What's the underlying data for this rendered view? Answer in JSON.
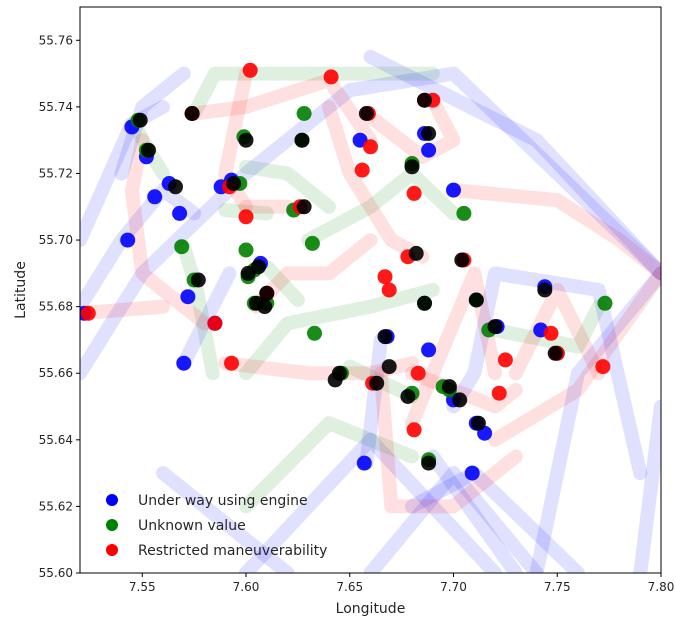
{
  "chart_data": {
    "type": "scatter",
    "title": "",
    "xlabel": "Longitude",
    "ylabel": "Latitude",
    "xlim": [
      7.52,
      7.8
    ],
    "ylim": [
      55.6,
      55.77
    ],
    "xticks": [
      "7.55",
      "7.60",
      "7.65",
      "7.70",
      "7.75",
      "7.80"
    ],
    "yticks": [
      "55.60",
      "55.62",
      "55.64",
      "55.66",
      "55.68",
      "55.70",
      "55.72",
      "55.74",
      "55.76"
    ],
    "grid": false,
    "legend_position": "lower-left",
    "series": [
      {
        "name": "Under way using engine",
        "color": "#0000ff",
        "tracks": [
          [
            [
              7.52,
              55.66
            ],
            [
              7.55,
              55.69
            ],
            [
              7.6,
              55.72
            ],
            [
              7.65,
              55.745
            ],
            [
              7.7,
              55.75
            ],
            [
              7.75,
              55.72
            ],
            [
              7.8,
              55.69
            ]
          ],
          [
            [
              7.52,
              55.7
            ],
            [
              7.545,
              55.735
            ],
            [
              7.56,
              55.74
            ]
          ],
          [
            [
              7.52,
              55.68
            ],
            [
              7.54,
              55.7
            ],
            [
              7.56,
              55.715
            ],
            [
              7.575,
              55.708
            ]
          ],
          [
            [
              7.66,
              55.755
            ],
            [
              7.74,
              55.73
            ],
            [
              7.8,
              55.69
            ]
          ],
          [
            [
              7.8,
              55.69
            ],
            [
              7.76,
              55.66
            ],
            [
              7.74,
              55.6
            ]
          ],
          [
            [
              7.8,
              55.65
            ],
            [
              7.79,
              55.6
            ]
          ],
          [
            [
              7.6,
              55.6
            ],
            [
              7.66,
              55.64
            ],
            [
              7.72,
              55.6
            ]
          ],
          [
            [
              7.56,
              55.63
            ],
            [
              7.62,
              55.6
            ]
          ],
          [
            [
              7.57,
              55.663
            ],
            [
              7.592,
              55.69
            ]
          ],
          [
            [
              7.658,
              55.633
            ],
            [
              7.665,
              55.67
            ]
          ],
          [
            [
              7.68,
              55.62
            ],
            [
              7.71,
              55.63
            ],
            [
              7.76,
              55.6
            ]
          ],
          [
            [
              7.69,
              55.635
            ],
            [
              7.73,
              55.6
            ]
          ],
          [
            [
              7.7,
              55.65
            ],
            [
              7.71,
              55.66
            ],
            [
              7.72,
              55.69
            ],
            [
              7.77,
              55.685
            ],
            [
              7.79,
              55.63
            ]
          ],
          [
            [
              7.66,
              55.6
            ],
            [
              7.7,
              55.63
            ],
            [
              7.74,
              55.6
            ]
          ],
          [
            [
              7.54,
              55.72
            ],
            [
              7.55,
              55.74
            ],
            [
              7.57,
              55.75
            ]
          ]
        ],
        "points": [
          [
            7.522,
            55.678
          ],
          [
            7.543,
            55.7
          ],
          [
            7.545,
            55.734
          ],
          [
            7.552,
            55.725
          ],
          [
            7.556,
            55.713
          ],
          [
            7.563,
            55.717
          ],
          [
            7.568,
            55.708
          ],
          [
            7.572,
            55.683
          ],
          [
            7.588,
            55.716
          ],
          [
            7.593,
            55.718
          ],
          [
            7.57,
            55.663
          ],
          [
            7.585,
            55.675
          ],
          [
            7.655,
            55.73
          ],
          [
            7.686,
            55.732
          ],
          [
            7.688,
            55.727
          ],
          [
            7.688,
            55.667
          ],
          [
            7.657,
            55.633
          ],
          [
            7.7,
            55.652
          ],
          [
            7.709,
            55.63
          ],
          [
            7.711,
            55.645
          ],
          [
            7.721,
            55.674
          ],
          [
            7.744,
            55.686
          ],
          [
            7.742,
            55.673
          ],
          [
            7.668,
            55.671
          ],
          [
            7.607,
            55.693
          ],
          [
            7.7,
            55.715
          ],
          [
            7.715,
            55.642
          ]
        ]
      },
      {
        "name": "Unknown value",
        "color": "#008000",
        "tracks": [
          [
            [
              7.575,
              55.738
            ],
            [
              7.585,
              55.75
            ],
            [
              7.62,
              55.75
            ],
            [
              7.69,
              55.75
            ]
          ],
          [
            [
              7.546,
              55.735
            ],
            [
              7.553,
              55.727
            ],
            [
              7.56,
              55.72
            ]
          ],
          [
            [
              7.6,
              55.722
            ],
            [
              7.62,
              55.72
            ],
            [
              7.64,
              55.71
            ]
          ],
          [
            [
              7.61,
              55.692
            ],
            [
              7.625,
              55.682
            ]
          ],
          [
            [
              7.6,
              55.66
            ],
            [
              7.62,
              55.675
            ],
            [
              7.66,
              55.68
            ],
            [
              7.69,
              55.685
            ]
          ],
          [
            [
              7.63,
              55.7
            ],
            [
              7.66,
              55.71
            ],
            [
              7.68,
              55.72
            ],
            [
              7.7,
              55.708
            ]
          ],
          [
            [
              7.6,
              55.62
            ],
            [
              7.64,
              55.645
            ],
            [
              7.68,
              55.635
            ]
          ],
          [
            [
              7.65,
              55.662
            ],
            [
              7.68,
              55.653
            ]
          ],
          [
            [
              7.57,
              55.698
            ],
            [
              7.576,
              55.686
            ],
            [
              7.584,
              55.66
            ]
          ],
          [
            [
              7.72,
              55.673
            ],
            [
              7.76,
              55.668
            ],
            [
              7.77,
              55.68
            ]
          ],
          [
            [
              7.59,
              55.709
            ],
            [
              7.61,
              55.708
            ]
          ]
        ],
        "points": [
          [
            7.548,
            55.736
          ],
          [
            7.552,
            55.727
          ],
          [
            7.574,
            55.738
          ],
          [
            7.569,
            55.698
          ],
          [
            7.575,
            55.688
          ],
          [
            7.597,
            55.717
          ],
          [
            7.599,
            55.731
          ],
          [
            7.6,
            55.697
          ],
          [
            7.601,
            55.689
          ],
          [
            7.604,
            55.681
          ],
          [
            7.627,
            55.73
          ],
          [
            7.628,
            55.738
          ],
          [
            7.632,
            55.699
          ],
          [
            7.633,
            55.672
          ],
          [
            7.623,
            55.709
          ],
          [
            7.646,
            55.66
          ],
          [
            7.688,
            55.634
          ],
          [
            7.695,
            55.656
          ],
          [
            7.698,
            55.655
          ],
          [
            7.705,
            55.708
          ],
          [
            7.711,
            55.682
          ],
          [
            7.717,
            55.673
          ],
          [
            7.773,
            55.681
          ],
          [
            7.75,
            55.666
          ],
          [
            7.68,
            55.723
          ],
          [
            7.686,
            55.681
          ],
          [
            7.68,
            55.654
          ],
          [
            7.604,
            55.691
          ],
          [
            7.61,
            55.681
          ]
        ]
      },
      {
        "name": "Restricted maneuverability",
        "color": "#ff0000",
        "tracks": [
          [
            [
              7.575,
              55.738
            ],
            [
              7.6,
              55.74
            ],
            [
              7.64,
              55.748
            ],
            [
              7.66,
              55.73
            ]
          ],
          [
            [
              7.66,
              55.737
            ],
            [
              7.685,
              55.725
            ],
            [
              7.7,
              55.73
            ],
            [
              7.69,
              55.742
            ]
          ],
          [
            [
              7.64,
              55.74
            ],
            [
              7.65,
              55.72
            ],
            [
              7.67,
              55.7
            ],
            [
              7.685,
              55.695
            ]
          ],
          [
            [
              7.6,
              55.75
            ],
            [
              7.59,
              55.72
            ],
            [
              7.6,
              55.71
            ]
          ],
          [
            [
              7.7,
              55.715
            ],
            [
              7.75,
              55.712
            ],
            [
              7.78,
              55.7
            ],
            [
              7.8,
              55.69
            ]
          ],
          [
            [
              7.52,
              55.678
            ],
            [
              7.56,
              55.68
            ]
          ],
          [
            [
              7.55,
              55.73
            ],
            [
              7.545,
              55.715
            ],
            [
              7.55,
              55.69
            ],
            [
              7.58,
              55.675
            ]
          ],
          [
            [
              7.59,
              55.663
            ],
            [
              7.63,
              55.66
            ],
            [
              7.66,
              55.66
            ],
            [
              7.68,
              55.663
            ]
          ],
          [
            [
              7.66,
              55.7
            ],
            [
              7.64,
              55.69
            ],
            [
              7.62,
              55.69
            ],
            [
              7.605,
              55.68
            ]
          ],
          [
            [
              7.665,
              55.66
            ],
            [
              7.67,
              55.62
            ],
            [
              7.7,
              55.62
            ],
            [
              7.73,
              55.635
            ]
          ],
          [
            [
              7.68,
              55.645
            ],
            [
              7.71,
              55.69
            ],
            [
              7.72,
              55.66
            ]
          ],
          [
            [
              7.68,
              55.66
            ],
            [
              7.7,
              55.655
            ],
            [
              7.72,
              55.65
            ],
            [
              7.73,
              55.655
            ]
          ],
          [
            [
              7.72,
              55.64
            ],
            [
              7.76,
              55.655
            ],
            [
              7.8,
              55.69
            ]
          ],
          [
            [
              7.73,
              55.66
            ],
            [
              7.75,
              55.685
            ],
            [
              7.77,
              55.66
            ]
          ],
          [
            [
              7.6,
              55.71
            ],
            [
              7.62,
              55.71
            ]
          ]
        ],
        "points": [
          [
            7.524,
            55.678
          ],
          [
            7.574,
            55.738
          ],
          [
            7.592,
            55.716
          ],
          [
            7.6,
            55.707
          ],
          [
            7.602,
            55.751
          ],
          [
            7.626,
            55.71
          ],
          [
            7.61,
            55.684
          ],
          [
            7.585,
            55.675
          ],
          [
            7.593,
            55.663
          ],
          [
            7.641,
            55.749
          ],
          [
            7.656,
            55.721
          ],
          [
            7.659,
            55.738
          ],
          [
            7.66,
            55.728
          ],
          [
            7.667,
            55.689
          ],
          [
            7.686,
            55.742
          ],
          [
            7.69,
            55.742
          ],
          [
            7.681,
            55.714
          ],
          [
            7.678,
            55.695
          ],
          [
            7.669,
            55.685
          ],
          [
            7.661,
            55.657
          ],
          [
            7.683,
            55.66
          ],
          [
            7.681,
            55.643
          ],
          [
            7.705,
            55.694
          ],
          [
            7.722,
            55.654
          ],
          [
            7.725,
            55.664
          ],
          [
            7.747,
            55.672
          ],
          [
            7.75,
            55.666
          ],
          [
            7.772,
            55.662
          ]
        ]
      },
      {
        "name": "",
        "color": "#000000",
        "tracks": [],
        "points": [
          [
            7.549,
            55.736
          ],
          [
            7.553,
            55.727
          ],
          [
            7.566,
            55.716
          ],
          [
            7.574,
            55.738
          ],
          [
            7.577,
            55.688
          ],
          [
            7.594,
            55.717
          ],
          [
            7.6,
            55.73
          ],
          [
            7.601,
            55.69
          ],
          [
            7.605,
            55.681
          ],
          [
            7.606,
            55.692
          ],
          [
            7.61,
            55.684
          ],
          [
            7.627,
            55.73
          ],
          [
            7.628,
            55.71
          ],
          [
            7.645,
            55.66
          ],
          [
            7.658,
            55.738
          ],
          [
            7.663,
            55.657
          ],
          [
            7.667,
            55.671
          ],
          [
            7.669,
            55.662
          ],
          [
            7.678,
            55.653
          ],
          [
            7.68,
            55.722
          ],
          [
            7.682,
            55.696
          ],
          [
            7.686,
            55.742
          ],
          [
            7.686,
            55.681
          ],
          [
            7.688,
            55.633
          ],
          [
            7.688,
            55.732
          ],
          [
            7.698,
            55.656
          ],
          [
            7.703,
            55.652
          ],
          [
            7.704,
            55.694
          ],
          [
            7.711,
            55.682
          ],
          [
            7.712,
            55.645
          ],
          [
            7.72,
            55.674
          ],
          [
            7.744,
            55.685
          ],
          [
            7.749,
            55.666
          ],
          [
            7.643,
            55.658
          ],
          [
            7.609,
            55.68
          ]
        ]
      }
    ],
    "legend": [
      {
        "label": "Under way using engine",
        "color": "#0000ff"
      },
      {
        "label": "Unknown value",
        "color": "#008000"
      },
      {
        "label": "Restricted maneuverability",
        "color": "#ff0000"
      }
    ]
  }
}
